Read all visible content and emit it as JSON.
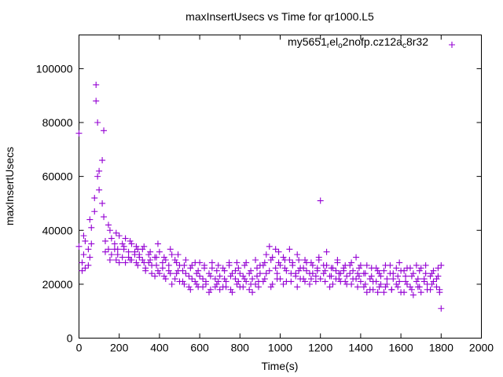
{
  "chart_data": {
    "type": "scatter",
    "title": "maxInsertUsecs vs Time for qr1000.L5",
    "xlabel": "Time(s)",
    "ylabel": "maxInsertUsecs",
    "xlim": [
      0,
      2000
    ],
    "ylim": [
      0,
      112500
    ],
    "xticks": [
      "0",
      "200",
      "400",
      "600",
      "800",
      "1000",
      "1200",
      "1400",
      "1600",
      "1800",
      "2000"
    ],
    "yticks": [
      "0",
      "20000",
      "40000",
      "60000",
      "80000",
      "100000"
    ],
    "grid": false,
    "legend_position": "top-right",
    "legend_label": "my5651_rel_o2nofp.cz12a_c8r32",
    "legend_parts": [
      [
        "my5651",
        ""
      ],
      [
        "r",
        "sub"
      ],
      [
        "el",
        ""
      ],
      [
        "o",
        "sub"
      ],
      [
        "2nofp.cz12a",
        ""
      ],
      [
        "c",
        "sub"
      ],
      [
        "8r32",
        ""
      ]
    ],
    "series": [
      {
        "name": "my5651_rel_o2nofp.cz12a_c8r32",
        "color": "#9400d3",
        "marker": "plus",
        "x_start": 0,
        "x_step": 10,
        "y": [
          34000,
          28000,
          38000,
          26000,
          33000,
          30000,
          41000,
          52000,
          94000,
          60000,
          55000,
          66000,
          77000,
          36000,
          33000,
          40000,
          31000,
          35000,
          29000,
          33000,
          38000,
          30000,
          34000,
          28000,
          32000,
          36000,
          29000,
          31000,
          34000,
          27000,
          30000,
          33000,
          28000,
          26000,
          31000,
          29000,
          24000,
          30000,
          27000,
          25000,
          32000,
          26000,
          23000,
          29000,
          27000,
          24000,
          31000,
          22000,
          28000,
          25000,
          27000,
          21000,
          27000,
          24000,
          19000,
          26000,
          22000,
          28000,
          20000,
          25000,
          23000,
          19000,
          27000,
          21000,
          24000,
          18000,
          26000,
          22000,
          20000,
          27000,
          23000,
          19000,
          25000,
          21000,
          28000,
          18000,
          24000,
          22000,
          20000,
          26000,
          19000,
          23000,
          27000,
          21000,
          18000,
          25000,
          22000,
          20000,
          26000,
          19000,
          24000,
          27000,
          22000,
          31000,
          25000,
          29000,
          20000,
          33000,
          24000,
          28000,
          22000,
          30000,
          26000,
          21000,
          29000,
          24000,
          27000,
          23000,
          31000,
          25000,
          22000,
          26000,
          21000,
          28000,
          24000,
          22000,
          27000,
          23000,
          25000,
          29000,
          51000,
          24000,
          21000,
          27000,
          23000,
          26000,
          20000,
          25000,
          28000,
          22000,
          24000,
          26000,
          21000,
          23000,
          27000,
          20000,
          25000,
          22000,
          24000,
          26000,
          21000,
          19000,
          24000,
          17000,
          22000,
          26000,
          18000,
          21000,
          25000,
          19000,
          23000,
          17000,
          27000,
          20000,
          24000,
          18000,
          22000,
          26000,
          19000,
          21000,
          25000,
          17000,
          23000,
          20000,
          26000,
          18000,
          24000,
          21000,
          19000,
          25000,
          17000,
          22000,
          27000,
          20000,
          18000,
          24000,
          21000,
          19000,
          23000,
          17000,
          11000
        ],
        "y2": [
          76000,
          25000,
          31000,
          36000,
          27000,
          44000,
          35000,
          47000,
          88000,
          80000,
          62000,
          50000,
          45000,
          32000,
          42000,
          29000,
          37000,
          33000,
          39000,
          31000,
          28000,
          35000,
          33000,
          37000,
          30000,
          29000,
          35000,
          32000,
          28000,
          33000,
          31000,
          29000,
          34000,
          25000,
          28000,
          32000,
          27000,
          23000,
          30000,
          35000,
          24000,
          28000,
          30000,
          22000,
          25000,
          33000,
          20000,
          29000,
          24000,
          31000,
          21000,
          25000,
          20000,
          29000,
          23000,
          18000,
          27000,
          21000,
          24000,
          19000,
          28000,
          22000,
          26000,
          20000,
          17000,
          23000,
          28000,
          19000,
          25000,
          21000,
          18000,
          26000,
          22000,
          19000,
          27000,
          23000,
          17000,
          25000,
          28000,
          21000,
          24000,
          19000,
          22000,
          28000,
          24000,
          20000,
          17000,
          29000,
          23000,
          21000,
          27000,
          21000,
          28000,
          24000,
          34000,
          19000,
          30000,
          26000,
          22000,
          32000,
          27000,
          20000,
          29000,
          25000,
          33000,
          21000,
          28000,
          24000,
          19000,
          29000,
          26000,
          22000,
          29000,
          25000,
          20000,
          28000,
          24000,
          21000,
          26000,
          30000,
          22000,
          27000,
          25000,
          32000,
          19000,
          23000,
          26000,
          22000,
          29000,
          24000,
          21000,
          25000,
          27000,
          20000,
          24000,
          28000,
          22000,
          30000,
          19000,
          23000,
          27000,
          24000,
          20000,
          27000,
          18000,
          23000,
          21000,
          26000,
          17000,
          24000,
          20000,
          25000,
          19000,
          22000,
          27000,
          18000,
          24000,
          20000,
          23000,
          28000,
          17000,
          25000,
          21000,
          26000,
          19000,
          23000,
          16000,
          27000,
          22000,
          19000,
          26000,
          21000,
          24000,
          18000,
          23000,
          20000,
          25000,
          22000,
          26000,
          18000,
          27000
        ]
      }
    ]
  }
}
